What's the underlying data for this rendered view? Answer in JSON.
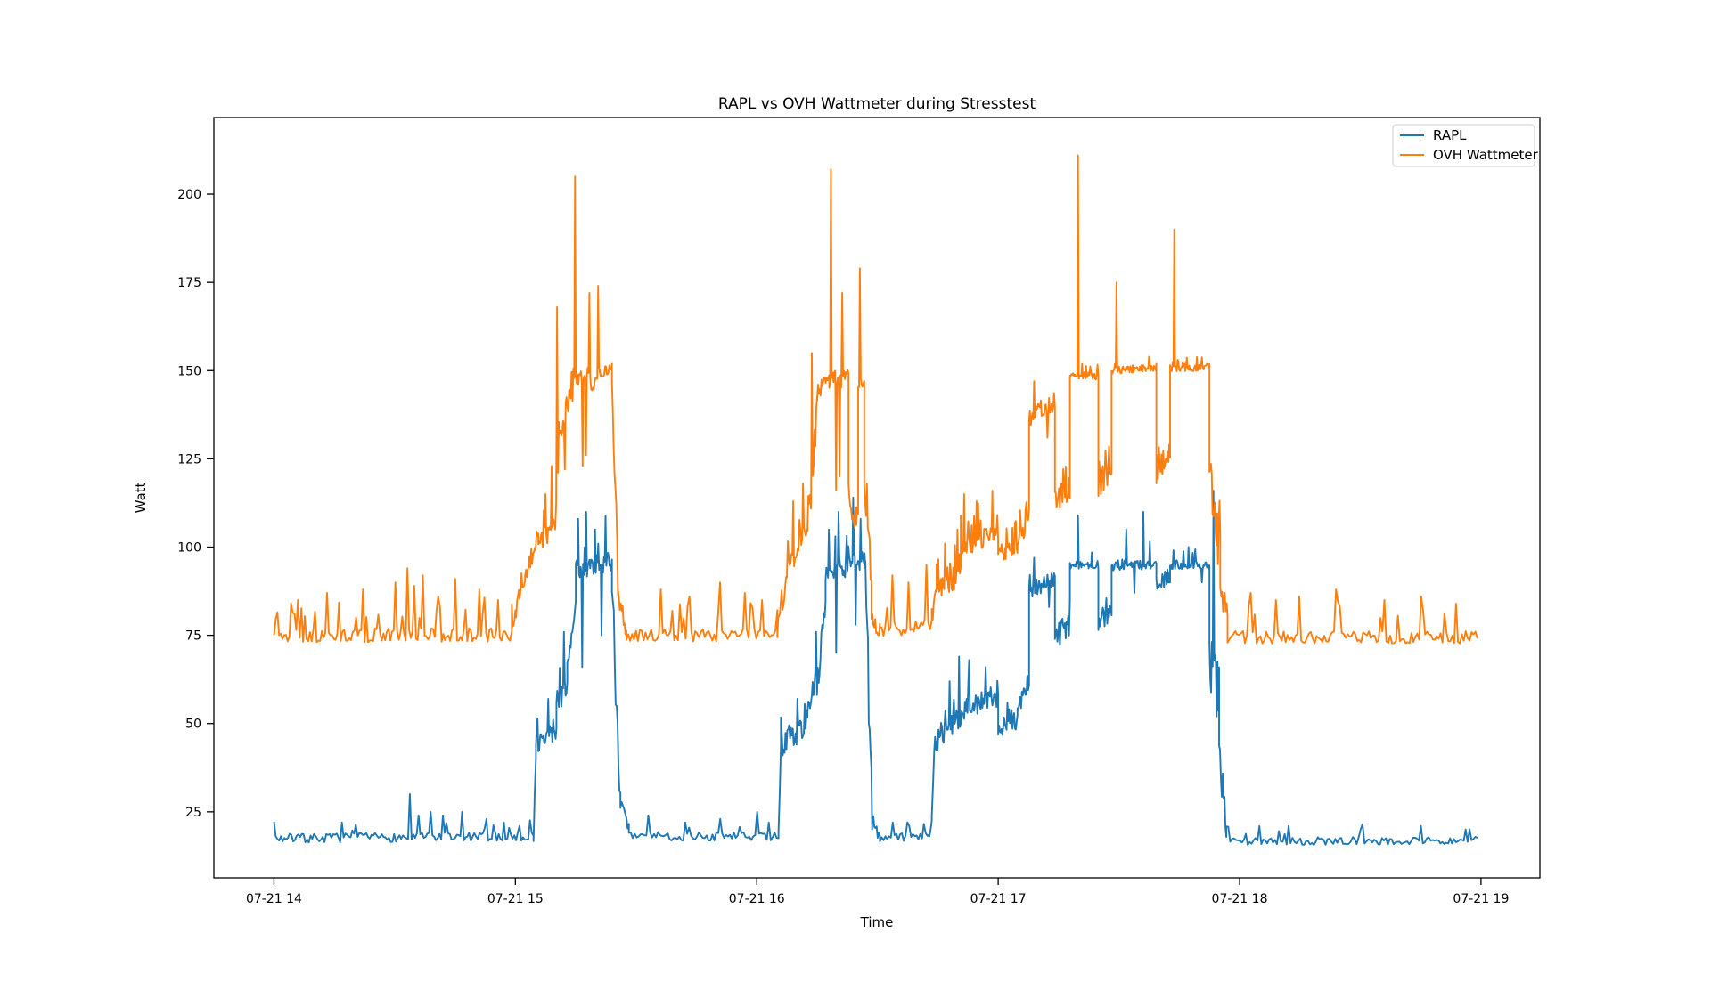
{
  "chart_data": {
    "type": "line",
    "title": "RAPL vs OVH Wattmeter during Stresstest",
    "xlabel": "Time",
    "ylabel": "Watt",
    "x_unit": "hours_of_day_on_07-21",
    "xlim": [
      13.751,
      19.244
    ],
    "ylim": [
      6.3,
      221.7
    ],
    "grid": false,
    "yticks": [
      25,
      50,
      75,
      100,
      125,
      150,
      175,
      200
    ],
    "xticks": [
      {
        "t": 14,
        "label": "07-21 14"
      },
      {
        "t": 15,
        "label": "07-21 15"
      },
      {
        "t": 16,
        "label": "07-21 16"
      },
      {
        "t": 17,
        "label": "07-21 17"
      },
      {
        "t": 18,
        "label": "07-21 18"
      },
      {
        "t": 19,
        "label": "07-21 19"
      }
    ],
    "legend": {
      "position": "upper right"
    },
    "segment_fields": [
      "t_start",
      "t_end",
      "watt_start",
      "watt_end",
      "noise_halfband_watt",
      "n_samples",
      "upward_burst_probability",
      "upward_burst_amplitude_watt"
    ],
    "spike_fields": [
      "t",
      "watt"
    ],
    "series": [
      {
        "name": "RAPL",
        "color": "#1f77b4",
        "segments": [
          [
            14.0,
            15.075,
            17.5,
            18.0,
            1.3,
            150,
            0.07,
            4
          ],
          [
            15.075,
            15.085,
            18,
            42,
            2,
            3
          ],
          [
            15.085,
            15.17,
            43,
            49,
            3.5,
            26,
            0.12,
            7
          ],
          [
            15.17,
            15.215,
            56,
            62,
            4,
            14,
            0.12,
            8
          ],
          [
            15.215,
            15.25,
            64,
            82,
            5,
            11
          ],
          [
            15.25,
            15.4,
            94,
            96,
            3,
            46,
            0.1,
            9
          ],
          [
            15.4,
            15.435,
            88,
            32,
            8,
            10
          ],
          [
            15.435,
            15.47,
            28,
            19,
            3,
            8
          ],
          [
            15.47,
            16.09,
            18,
            18,
            1.3,
            78,
            0.08,
            4
          ],
          [
            16.09,
            16.1,
            19,
            42,
            2,
            3
          ],
          [
            16.1,
            16.21,
            44,
            50,
            3.5,
            30,
            0.12,
            7
          ],
          [
            16.21,
            16.26,
            55,
            64,
            4,
            15,
            0.12,
            8
          ],
          [
            16.26,
            16.285,
            66,
            84,
            5,
            8
          ],
          [
            16.285,
            16.45,
            93,
            96,
            3,
            50,
            0.1,
            9
          ],
          [
            16.45,
            16.478,
            90,
            28,
            8,
            9
          ],
          [
            16.478,
            16.51,
            24,
            18,
            2.5,
            8
          ],
          [
            16.51,
            16.715,
            17.5,
            18,
            1.2,
            28,
            0.06,
            4
          ],
          [
            16.715,
            16.725,
            19,
            23,
            1.5,
            3
          ],
          [
            16.725,
            16.735,
            23,
            42,
            2,
            3
          ],
          [
            16.735,
            16.845,
            44,
            52,
            3.2,
            32,
            0.12,
            8
          ],
          [
            16.845,
            17.0,
            54,
            58,
            3.2,
            46,
            0.1,
            7
          ],
          [
            17.0,
            17.08,
            49,
            51,
            2.8,
            24,
            0.08,
            6
          ],
          [
            17.08,
            17.128,
            55,
            62,
            3,
            14,
            0.08,
            6
          ],
          [
            17.128,
            17.235,
            88,
            91,
            2.5,
            32,
            0.08,
            5
          ],
          [
            17.235,
            17.297,
            74,
            78,
            3.5,
            19,
            0.08,
            6
          ],
          [
            17.297,
            17.415,
            95,
            95,
            1.1,
            36,
            0.03,
            3
          ],
          [
            17.415,
            17.47,
            79,
            82,
            3,
            16,
            0.1,
            5
          ],
          [
            17.47,
            17.655,
            95,
            95,
            1.6,
            56,
            0.07,
            6
          ],
          [
            17.655,
            17.712,
            89,
            92,
            2.2,
            17,
            0.06,
            4
          ],
          [
            17.712,
            17.875,
            95,
            95,
            1.3,
            48,
            0.05,
            4
          ],
          [
            17.875,
            17.915,
            68,
            58,
            8,
            13
          ],
          [
            17.915,
            17.945,
            40,
            22,
            5,
            9
          ],
          [
            17.945,
            18.985,
            16.6,
            16.9,
            1.1,
            130,
            0.05,
            4
          ]
        ],
        "spikes": [
          [
            14.28,
            22
          ],
          [
            14.56,
            30
          ],
          [
            14.6,
            24
          ],
          [
            14.65,
            25
          ],
          [
            14.7,
            24
          ],
          [
            14.78,
            25
          ],
          [
            14.88,
            23
          ],
          [
            14.95,
            22
          ],
          [
            15.02,
            21
          ],
          [
            15.135,
            57
          ],
          [
            15.2,
            76
          ],
          [
            15.26,
            108
          ],
          [
            15.277,
            66
          ],
          [
            15.295,
            110
          ],
          [
            15.33,
            105
          ],
          [
            15.357,
            75
          ],
          [
            15.375,
            109
          ],
          [
            15.42,
            55
          ],
          [
            15.55,
            24
          ],
          [
            15.7,
            22
          ],
          [
            15.85,
            23
          ],
          [
            16.0,
            25
          ],
          [
            16.05,
            22
          ],
          [
            16.17,
            57
          ],
          [
            16.245,
            76
          ],
          [
            16.3,
            105
          ],
          [
            16.33,
            70
          ],
          [
            16.34,
            110
          ],
          [
            16.4,
            114
          ],
          [
            16.41,
            78
          ],
          [
            16.43,
            108
          ],
          [
            16.465,
            50
          ],
          [
            16.56,
            22
          ],
          [
            16.63,
            21
          ],
          [
            16.8,
            62
          ],
          [
            16.838,
            69
          ],
          [
            16.88,
            68
          ],
          [
            16.95,
            66
          ],
          [
            17.15,
            97
          ],
          [
            17.21,
            83
          ],
          [
            17.332,
            109
          ],
          [
            17.53,
            105
          ],
          [
            17.565,
            87
          ],
          [
            17.6,
            110
          ],
          [
            17.79,
            100
          ],
          [
            17.845,
            90
          ],
          [
            17.893,
            116
          ],
          [
            17.905,
            52
          ],
          [
            18.2,
            21
          ],
          [
            18.5,
            20
          ],
          [
            18.75,
            21
          ],
          [
            18.94,
            20
          ]
        ]
      },
      {
        "name": "OVH Wattmeter",
        "color": "#ff7f0e",
        "segments": [
          [
            14.0,
            14.985,
            74.8,
            75.2,
            2.0,
            140,
            0.13,
            9
          ],
          [
            14.985,
            15.04,
            77,
            91,
            3.5,
            16,
            0.1,
            6
          ],
          [
            15.04,
            15.095,
            93,
            101,
            3,
            16,
            0.1,
            5
          ],
          [
            15.095,
            15.165,
            101,
            106,
            3,
            20,
            0.15,
            8
          ],
          [
            15.165,
            15.18,
            108,
            132,
            6,
            5
          ],
          [
            15.18,
            15.24,
            134,
            146,
            5,
            18,
            0.08,
            6
          ],
          [
            15.24,
            15.31,
            147,
            150,
            2,
            21
          ],
          [
            15.31,
            15.35,
            146,
            149,
            2.5,
            12
          ],
          [
            15.35,
            15.4,
            149,
            151,
            1.5,
            15
          ],
          [
            15.4,
            15.425,
            148,
            92,
            6,
            8
          ],
          [
            15.425,
            15.46,
            85,
            77,
            3,
            10
          ],
          [
            15.46,
            16.085,
            75,
            75,
            1.8,
            80,
            0.12,
            8
          ],
          [
            16.085,
            16.125,
            77,
            92,
            4,
            12,
            0.1,
            5
          ],
          [
            16.125,
            16.21,
            94,
            103,
            3.5,
            24,
            0.15,
            8
          ],
          [
            16.21,
            16.25,
            106,
            138,
            8,
            12
          ],
          [
            16.25,
            16.3,
            144,
            149,
            2.5,
            15
          ],
          [
            16.3,
            16.35,
            147,
            149,
            2,
            15
          ],
          [
            16.35,
            16.38,
            147,
            150,
            2,
            9
          ],
          [
            16.38,
            16.42,
            112,
            108,
            4,
            12,
            0.1,
            6
          ],
          [
            16.42,
            16.445,
            146,
            148,
            2,
            8
          ],
          [
            16.445,
            16.475,
            120,
            86,
            8,
            9
          ],
          [
            16.475,
            16.51,
            80,
            76,
            2.5,
            10
          ],
          [
            16.51,
            16.725,
            76.5,
            78,
            2.2,
            30,
            0.18,
            9
          ],
          [
            16.725,
            16.745,
            80,
            86,
            3,
            6
          ],
          [
            16.745,
            16.845,
            87,
            93,
            3.5,
            30,
            0.22,
            9
          ],
          [
            16.845,
            17.0,
            100,
            104,
            2.8,
            46,
            0.15,
            9
          ],
          [
            17.0,
            17.08,
            98,
            101,
            2.8,
            24,
            0.12,
            7
          ],
          [
            17.08,
            17.128,
            102,
            107,
            3,
            14,
            0.12,
            7
          ],
          [
            17.128,
            17.235,
            137,
            141,
            2.8,
            32,
            0.08,
            5
          ],
          [
            17.235,
            17.297,
            113,
            117,
            3.5,
            19,
            0.1,
            6
          ],
          [
            17.297,
            17.415,
            148.5,
            148.5,
            1.1,
            36,
            0.04,
            3
          ],
          [
            17.415,
            17.47,
            118,
            122,
            4,
            16,
            0.12,
            8
          ],
          [
            17.47,
            17.655,
            150,
            151,
            1.1,
            56,
            0.04,
            3
          ],
          [
            17.655,
            17.712,
            122,
            127,
            4,
            17,
            0.1,
            7
          ],
          [
            17.712,
            17.875,
            151,
            151,
            1.2,
            48,
            0.04,
            3
          ],
          [
            17.875,
            17.92,
            118,
            100,
            9,
            15,
            0.15,
            12
          ],
          [
            17.92,
            17.95,
            92,
            78,
            5,
            9
          ],
          [
            17.95,
            18.985,
            74.5,
            74.5,
            1.8,
            130,
            0.12,
            9
          ]
        ],
        "spikes": [
          [
            14.1,
            85
          ],
          [
            14.22,
            87
          ],
          [
            14.37,
            88
          ],
          [
            14.5,
            90
          ],
          [
            14.55,
            94
          ],
          [
            14.58,
            89
          ],
          [
            14.62,
            92
          ],
          [
            14.68,
            86
          ],
          [
            14.75,
            91
          ],
          [
            14.85,
            88
          ],
          [
            14.93,
            85
          ],
          [
            15.125,
            115
          ],
          [
            15.15,
            123
          ],
          [
            15.172,
            168
          ],
          [
            15.205,
            122
          ],
          [
            15.247,
            205
          ],
          [
            15.277,
            123
          ],
          [
            15.292,
            126
          ],
          [
            15.307,
            172
          ],
          [
            15.342,
            174
          ],
          [
            15.6,
            88
          ],
          [
            15.72,
            86
          ],
          [
            15.85,
            90
          ],
          [
            15.95,
            87
          ],
          [
            16.02,
            85
          ],
          [
            16.15,
            113
          ],
          [
            16.19,
            118
          ],
          [
            16.228,
            155
          ],
          [
            16.306,
            207
          ],
          [
            16.33,
            116
          ],
          [
            16.342,
            120
          ],
          [
            16.355,
            172
          ],
          [
            16.428,
            179
          ],
          [
            16.455,
            118
          ],
          [
            16.56,
            92
          ],
          [
            16.63,
            90
          ],
          [
            16.7,
            95
          ],
          [
            16.78,
            101
          ],
          [
            16.83,
            105
          ],
          [
            16.86,
            115
          ],
          [
            16.91,
            113
          ],
          [
            16.975,
            116
          ],
          [
            17.15,
            147
          ],
          [
            17.205,
            131
          ],
          [
            17.332,
            211
          ],
          [
            17.49,
            175
          ],
          [
            17.728,
            190
          ],
          [
            18.05,
            87
          ],
          [
            18.15,
            85
          ],
          [
            18.25,
            86
          ],
          [
            18.4,
            88
          ],
          [
            18.6,
            85
          ],
          [
            18.75,
            86
          ],
          [
            18.9,
            84
          ]
        ]
      }
    ]
  }
}
